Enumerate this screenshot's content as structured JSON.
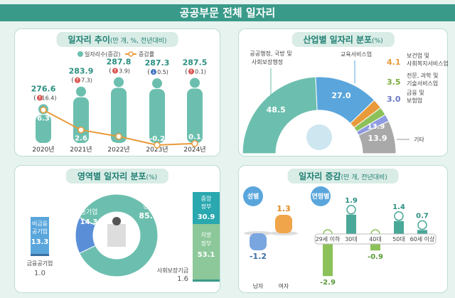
{
  "title": "공공부문 전체 일자리",
  "colors": {
    "teal": "#6cbfae",
    "dark_teal": "#3a9a8a",
    "orange": "#e89a3a",
    "blue": "#5aa6dc",
    "green": "#8cc15a",
    "gray": "#a9a9a9",
    "purple": "#8e9be0",
    "red": "#d9534f"
  },
  "chart_data": [
    {
      "type": "bar",
      "title": "일자리 추이",
      "title_unit": "(만 개, %, 전년대비)",
      "legend": [
        "일자리수(증감)",
        "증감률"
      ],
      "categories": [
        "2020년",
        "2021년",
        "2022년",
        "2023년",
        "2024년"
      ],
      "series": [
        {
          "name": "일자리수(증감)",
          "values": [
            276.6,
            283.9,
            287.8,
            287.3,
            287.5
          ],
          "changes": [
            "16.4",
            "7.3",
            "3.9",
            "0.5",
            "0.1"
          ],
          "change_dir": [
            "up",
            "up",
            "up",
            "down",
            "up"
          ]
        },
        {
          "name": "증감률",
          "type": "line",
          "values": [
            6.3,
            2.6,
            1.4,
            -0.2,
            0.1
          ]
        }
      ]
    },
    {
      "type": "pie",
      "title": "산업별 일자리 분포",
      "title_unit": "(%)",
      "slices": [
        {
          "label": "공공행정, 국방 및 사회보장행정",
          "value": 48.5,
          "color": "#6cbfae"
        },
        {
          "label": "교육서비스업",
          "value": 27.0,
          "color": "#5aa6dc"
        },
        {
          "label": "보건업 및 사회복지서비스업",
          "value": 4.1,
          "color": "#e89a3a"
        },
        {
          "label": "전문, 과학 및 기술서비스업",
          "value": 3.5,
          "color": "#8cc15a"
        },
        {
          "label": "금융 및 보험업",
          "value": 3.0,
          "color": "#8e9be0"
        },
        {
          "label": "기타",
          "value": 13.9,
          "color": "#a9a9a9"
        }
      ]
    },
    {
      "type": "pie",
      "title": "영역별 일자리 분포",
      "title_unit": "(%)",
      "slices": [
        {
          "label": "공기업",
          "value": 14.3
        },
        {
          "label": "일반 정부",
          "value": 85.7
        }
      ],
      "public_corp": [
        {
          "label": "비금융 공기업",
          "value": 13.3
        },
        {
          "label": "금융공기업",
          "value": 1.0
        }
      ],
      "general_gov": [
        {
          "label": "중앙 정부",
          "value": 30.9
        },
        {
          "label": "지방 정부",
          "value": 53.1
        },
        {
          "label": "사회보장기금",
          "value": 1.6
        }
      ]
    },
    {
      "type": "bar",
      "title": "일자리 증감",
      "title_unit": "(만 개, 전년대비)",
      "groups": [
        {
          "label": "성별",
          "categories": [
            "남자",
            "여자"
          ],
          "values": [
            -1.2,
            1.3
          ]
        },
        {
          "label": "연령별",
          "categories": [
            "29세 이하",
            "30대",
            "40대",
            "50대",
            "60세 이상"
          ],
          "values": [
            -2.9,
            1.9,
            -0.9,
            1.4,
            0.7
          ]
        }
      ]
    }
  ]
}
